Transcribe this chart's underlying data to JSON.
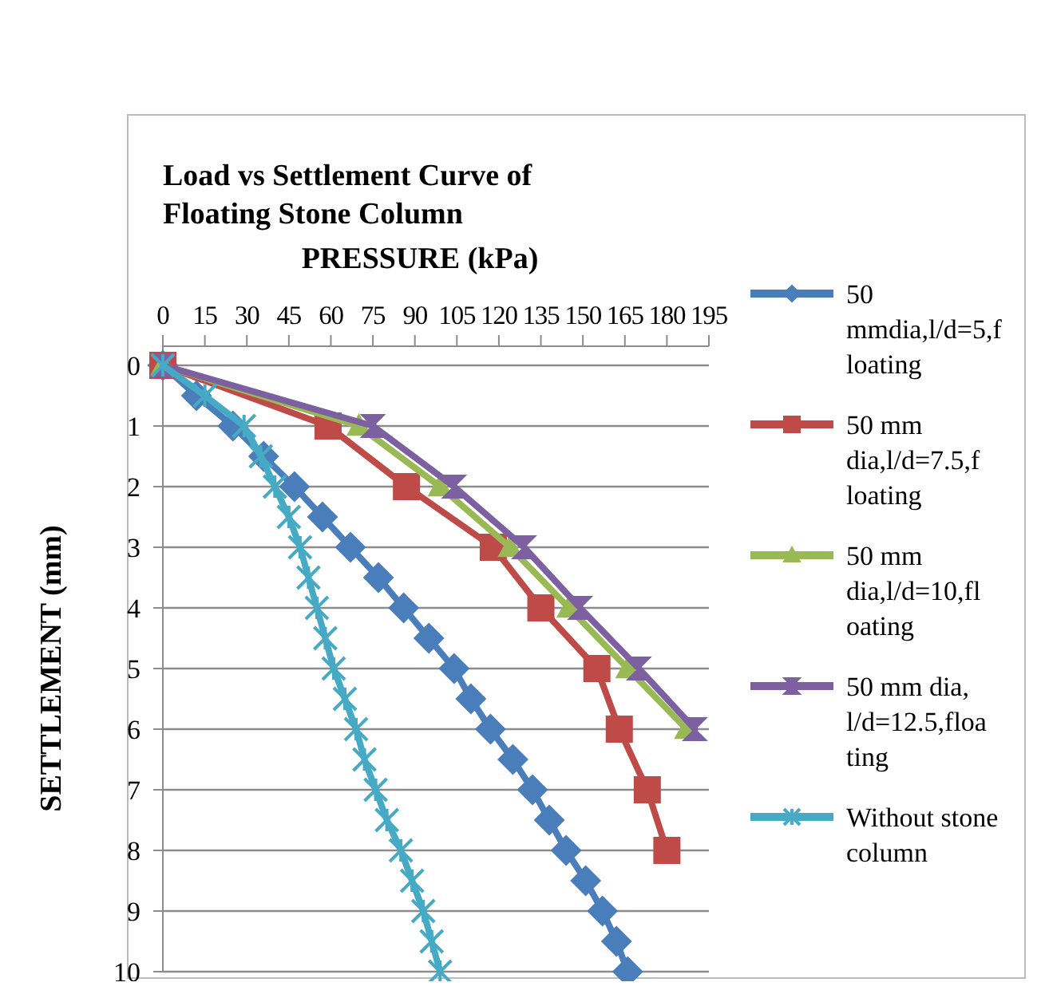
{
  "chart_data": {
    "type": "line",
    "title": "Load vs Settlement Curve of Floating Stone Column",
    "xlabel": "PRESSURE (kPa)",
    "ylabel": "SETTLEMENT (mm)",
    "xlim": [
      0,
      195
    ],
    "xticks": [
      0,
      15,
      30,
      45,
      60,
      75,
      90,
      105,
      120,
      135,
      150,
      165,
      180,
      195
    ],
    "ylim": [
      10,
      0
    ],
    "yticks": [
      0,
      1,
      2,
      3,
      4,
      5,
      6,
      7,
      8,
      9,
      10
    ],
    "grid": "y",
    "legend": "right",
    "series": [
      {
        "name": "50 mmdia,l/d=5,floating",
        "color": "#4a7ebb",
        "marker": "diamond",
        "x": [
          0,
          12,
          25,
          36,
          47,
          57,
          67,
          77,
          86,
          95,
          104,
          110,
          117,
          125,
          132,
          138,
          144,
          151,
          157,
          162,
          166
        ],
        "values": [
          0,
          0.5,
          1,
          1.5,
          2,
          2.5,
          3,
          3.5,
          4,
          4.5,
          5,
          5.5,
          6,
          6.5,
          7,
          7.5,
          8,
          8.5,
          9,
          9.5,
          10
        ]
      },
      {
        "name": "50 mm dia,l/d=7.5,floating",
        "color": "#be4b48",
        "marker": "square",
        "x": [
          0,
          59,
          87,
          118,
          135,
          155,
          163,
          173,
          180
        ],
        "values": [
          0,
          1,
          2,
          3,
          4,
          5,
          6,
          7,
          8
        ]
      },
      {
        "name": "50 mm dia,l/d=10,floating",
        "color": "#98b954",
        "marker": "triangle",
        "x": [
          0,
          70,
          99,
          124,
          145,
          166,
          187
        ],
        "values": [
          0,
          1,
          2,
          3,
          4,
          5,
          6
        ]
      },
      {
        "name": "50 mm dia, l/d=12.5,floating",
        "color": "#7d60a0",
        "marker": "star",
        "x": [
          0,
          75,
          104,
          129,
          149,
          170,
          190
        ],
        "values": [
          0,
          1,
          2,
          3,
          4,
          5,
          6
        ]
      },
      {
        "name": "Without stone column",
        "color": "#46aac5",
        "marker": "cross",
        "x": [
          0,
          15,
          29,
          35,
          40,
          45,
          49,
          52,
          55,
          58,
          61,
          65,
          69,
          72,
          76,
          80,
          85,
          89,
          93,
          96,
          99
        ],
        "values": [
          0,
          0.5,
          1,
          1.5,
          2,
          2.5,
          3,
          3.5,
          4,
          4.5,
          5,
          5.5,
          6,
          6.5,
          7,
          7.5,
          8,
          8.5,
          9,
          9.5,
          10
        ]
      }
    ]
  }
}
